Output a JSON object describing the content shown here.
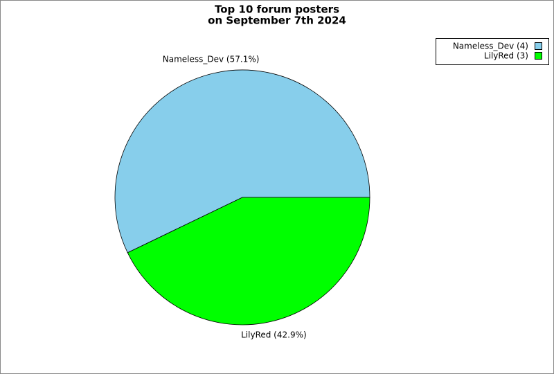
{
  "chart_data": {
    "type": "pie",
    "title": [
      "Top 10 forum posters",
      "on September 7th 2024"
    ],
    "categories": [
      "Nameless_Dev",
      "LilyRed"
    ],
    "values": [
      4,
      3
    ],
    "value_labels": [
      "Nameless_Dev (57.1%)",
      "LilyRed (42.9%)"
    ],
    "legend_labels": [
      "Nameless_Dev (4)",
      "LilyRed (3)"
    ],
    "colors": [
      "#87ceeb",
      "#00ff00"
    ],
    "legend": "top-right"
  }
}
